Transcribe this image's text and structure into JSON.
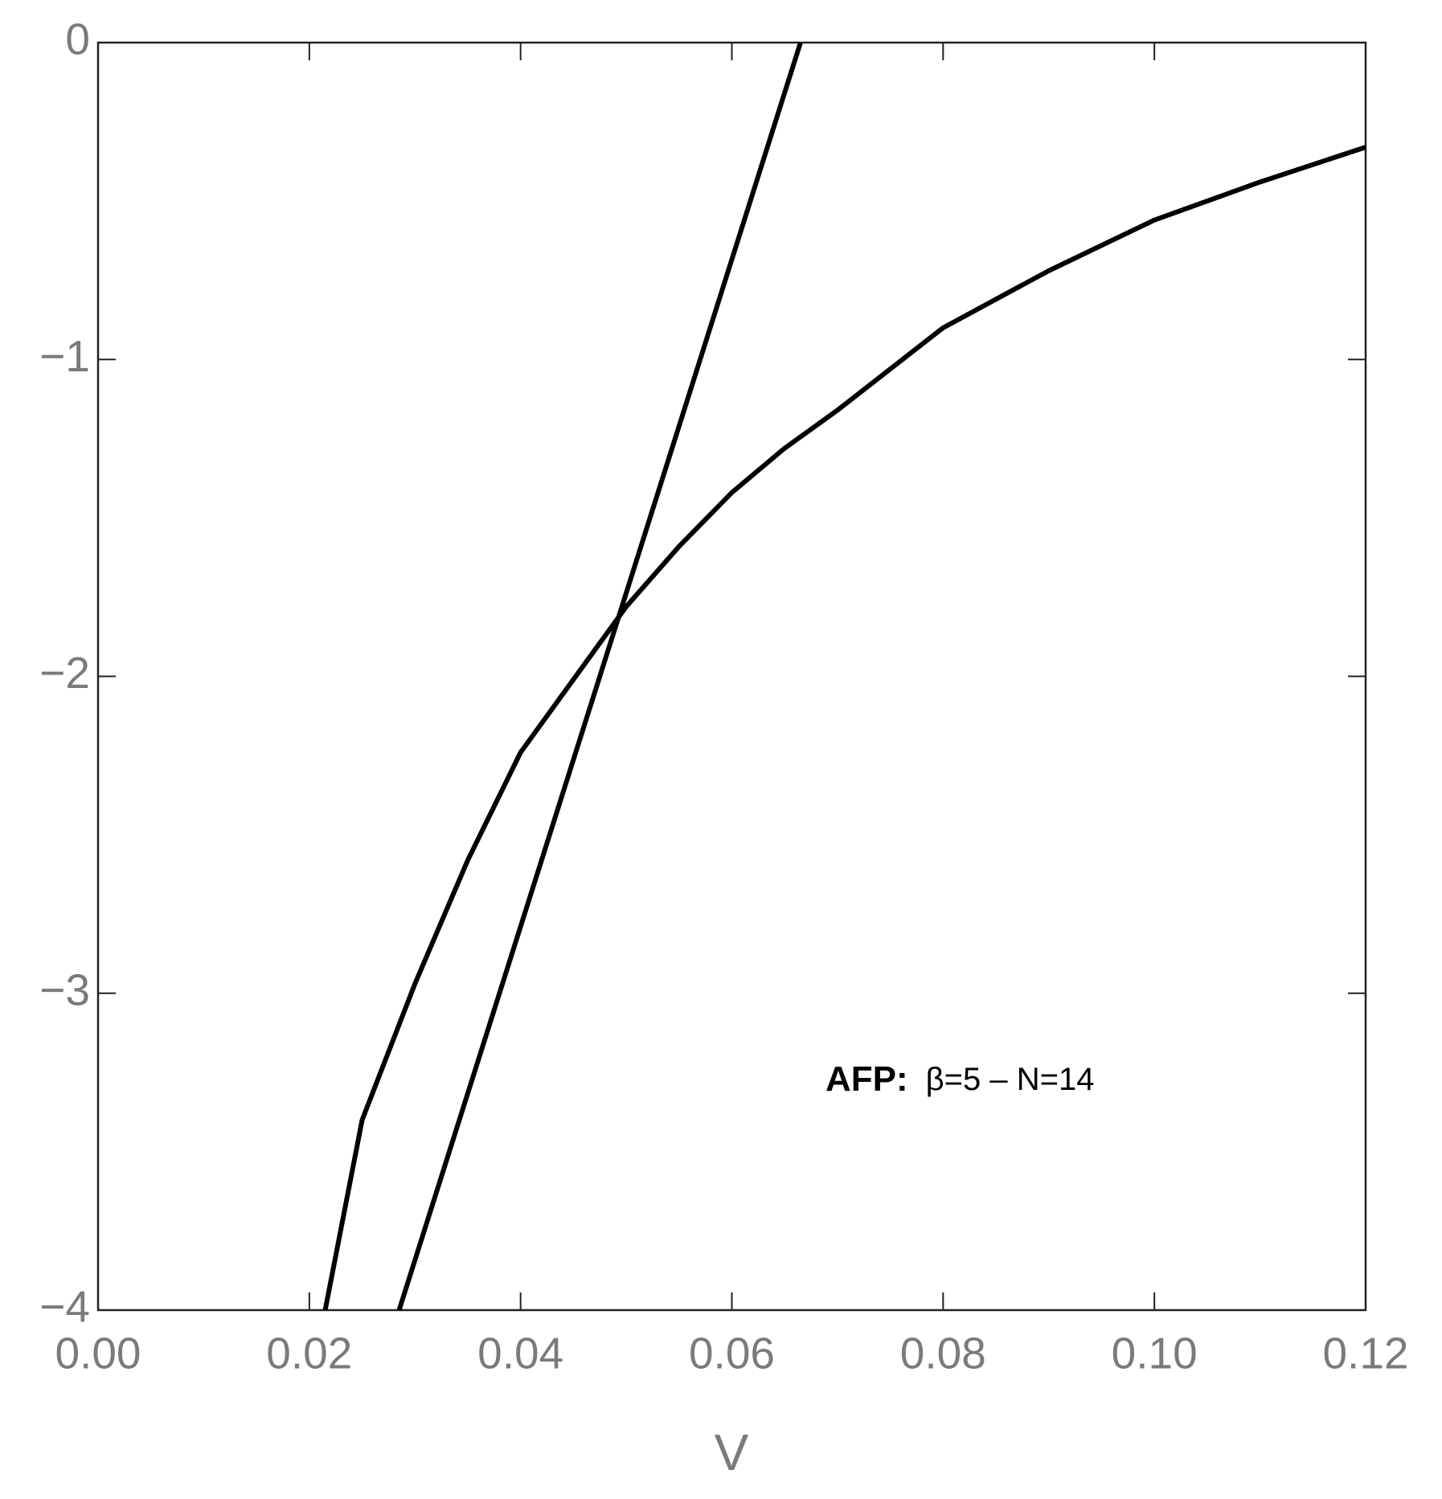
{
  "chart_data": {
    "type": "line",
    "x_label": "V",
    "annotation": {
      "bold": "AFP:",
      "text": "β=5 – N=14"
    },
    "xlim": [
      0,
      0.12
    ],
    "ylim": [
      -4,
      0
    ],
    "xticks": [
      {
        "value": 0,
        "label": "0.00"
      },
      {
        "value": 0.02,
        "label": "0.02"
      },
      {
        "value": 0.04,
        "label": "0.04"
      },
      {
        "value": 0.06,
        "label": "0.06"
      },
      {
        "value": 0.08,
        "label": "0.08"
      },
      {
        "value": 0.1,
        "label": "0.10"
      },
      {
        "value": 0.12,
        "label": "0.12"
      }
    ],
    "yticks": [
      0,
      {
        "value": -1,
        "label": "−1"
      },
      {
        "value": -2,
        "label": "−2"
      },
      {
        "value": -3,
        "label": "−3"
      },
      {
        "value": -4,
        "label": "−4"
      }
    ],
    "grid": false,
    "series": [
      {
        "color": "#000000",
        "x": [
          0.0215,
          0.025,
          0.03,
          0.035,
          0.04,
          0.045,
          0.05,
          0.055,
          0.06,
          0.065,
          0.07,
          0.08,
          0.09,
          0.1,
          0.11,
          0.12
        ],
        "values": [
          -4,
          -3.4,
          -2.97,
          -2.58,
          -2.24,
          -2.01,
          -1.78,
          -1.59,
          -1.42,
          -1.28,
          -1.16,
          -0.9,
          -0.72,
          -0.56,
          -0.44,
          -0.33
        ]
      },
      {
        "color": "#000000",
        "x": [
          0.0285,
          0.0665
        ],
        "values": [
          -4,
          0
        ]
      }
    ]
  }
}
